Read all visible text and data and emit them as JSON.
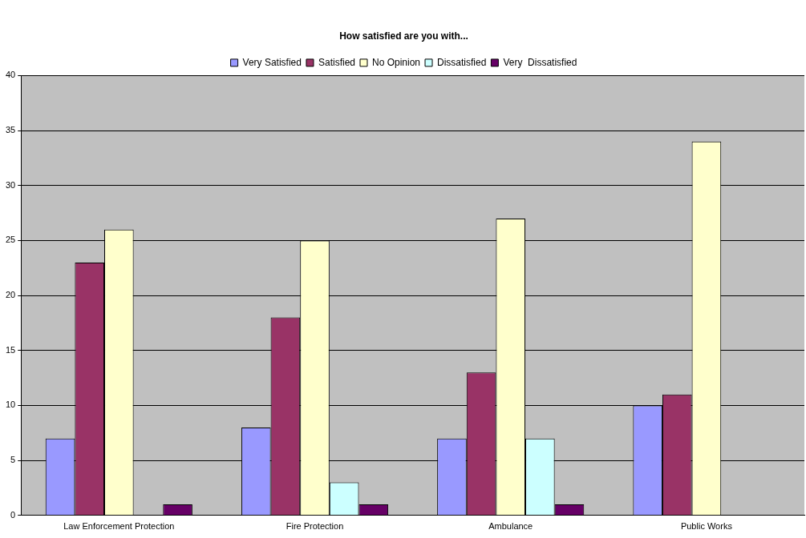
{
  "chart_data": {
    "type": "bar",
    "title": "How satisfied are you with...",
    "categories": [
      "Law Enforcement Protection",
      "Fire Protection",
      "Ambulance",
      "Public Works"
    ],
    "series": [
      {
        "name": "Very Satisfied",
        "color": "#9999ff",
        "values": [
          7,
          8,
          7,
          10
        ]
      },
      {
        "name": "Satisfied",
        "color": "#993366",
        "values": [
          23,
          18,
          13,
          11
        ]
      },
      {
        "name": "No Opinion",
        "color": "#ffffcc",
        "values": [
          26,
          25,
          27,
          34
        ]
      },
      {
        "name": "Dissatisfied",
        "color": "#ccffff",
        "values": [
          0,
          3,
          7,
          0
        ]
      },
      {
        "name": "Very  Dissatisfied",
        "color": "#660066",
        "values": [
          1,
          1,
          1,
          0
        ]
      }
    ],
    "ylim": [
      0,
      40
    ],
    "yticks": [
      0,
      5,
      10,
      15,
      20,
      25,
      30,
      35,
      40
    ],
    "grid": "y",
    "legend": "top"
  }
}
